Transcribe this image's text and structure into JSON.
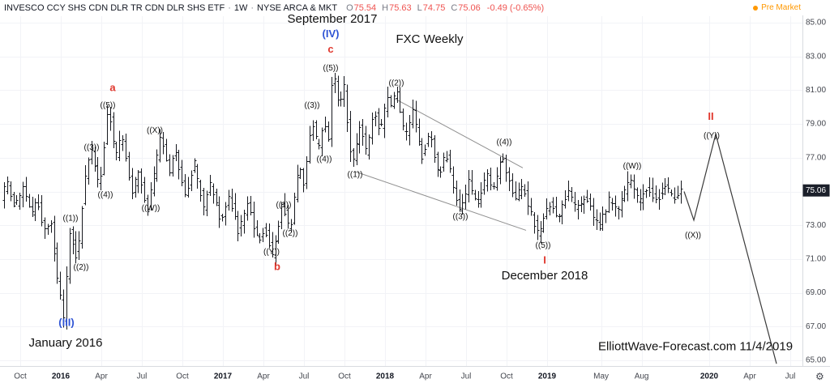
{
  "legend": {
    "symbol": "INVESCO CCY SHS CDN DLR TR CDN DLR SHS ETF",
    "sep": "·",
    "interval": "1W",
    "exchange": "NYSE ARCA & MKT",
    "ohlc": [
      {
        "k": "O",
        "v": "75.54"
      },
      {
        "k": "H",
        "v": "75.63"
      },
      {
        "k": "L",
        "v": "74.75"
      },
      {
        "k": "C",
        "v": "75.06"
      }
    ],
    "change": "-0.49 (-0.65%)",
    "pre_market": "Pre Market"
  },
  "axis_corner": {
    "gear": "⚙"
  },
  "colors": {
    "background": "#ffffff",
    "bar": "#16181e",
    "grid": "#f2f3f7",
    "channel_line": "#8f8f8f",
    "projection_line": "#3a3a3a",
    "label_black": "#111111",
    "label_blue": "#2e53d4",
    "label_red": "#e0382e",
    "axis_text": "#44474f",
    "axis_text_year": "#131722",
    "axis_border": "#d8dbe0",
    "badge_bg": "#1b1f2a",
    "badge_text": "#ffffff",
    "legend_value_red": "#ef5350",
    "pre_market": "#ff9800"
  },
  "chart_data": {
    "type": "bar",
    "title": "FXC Weekly",
    "xlabel": "",
    "ylabel": "",
    "grid": true,
    "ylim": [
      65,
      85
    ],
    "x_range": [
      2015.65,
      2019.84
    ],
    "last_price": "75.06",
    "last_close": 75.06,
    "y_ticks": [
      "85.00",
      "83.00",
      "81.00",
      "79.00",
      "77.00",
      "75.00",
      "73.00",
      "71.00",
      "69.00",
      "67.00",
      "65.00"
    ],
    "x_ticks": [
      {
        "label": "Oct",
        "t": 2015.75
      },
      {
        "label": "2016",
        "t": 2016,
        "year": true
      },
      {
        "label": "Apr",
        "t": 2016.25
      },
      {
        "label": "Jul",
        "t": 2016.5
      },
      {
        "label": "Oct",
        "t": 2016.75
      },
      {
        "label": "2017",
        "t": 2017,
        "year": true
      },
      {
        "label": "Apr",
        "t": 2017.25
      },
      {
        "label": "Jul",
        "t": 2017.5
      },
      {
        "label": "Oct",
        "t": 2017.75
      },
      {
        "label": "2018",
        "t": 2018,
        "year": true
      },
      {
        "label": "Apr",
        "t": 2018.25
      },
      {
        "label": "Jul",
        "t": 2018.5
      },
      {
        "label": "Oct",
        "t": 2018.75
      },
      {
        "label": "2019",
        "t": 2019,
        "year": true
      },
      {
        "label": "May",
        "t": 2019.333
      },
      {
        "label": "Aug",
        "t": 2019.583
      },
      {
        "label": "2020",
        "t": 2020,
        "year": true
      },
      {
        "label": "Apr",
        "t": 2020.25
      },
      {
        "label": "Jul",
        "t": 2020.5
      }
    ],
    "price_path": [
      [
        2015.64,
        74.4
      ],
      [
        2015.685,
        75.5
      ],
      [
        2015.735,
        74.0
      ],
      [
        2015.785,
        75.3
      ],
      [
        2015.835,
        73.7
      ],
      [
        2015.875,
        74.6
      ],
      [
        2015.915,
        72.6
      ],
      [
        2015.955,
        73.4
      ],
      [
        2016.0,
        69.6
      ],
      [
        2016.035,
        67.5
      ],
      [
        2016.075,
        72.8
      ],
      [
        2016.12,
        70.9
      ],
      [
        2016.165,
        75.8
      ],
      [
        2016.21,
        77.6
      ],
      [
        2016.255,
        75.0
      ],
      [
        2016.31,
        80.2
      ],
      [
        2016.355,
        77.0
      ],
      [
        2016.395,
        78.4
      ],
      [
        2016.455,
        74.8
      ],
      [
        2016.495,
        76.2
      ],
      [
        2016.555,
        73.9
      ],
      [
        2016.635,
        78.4
      ],
      [
        2016.685,
        76.2
      ],
      [
        2016.725,
        77.5
      ],
      [
        2016.785,
        74.7
      ],
      [
        2016.84,
        76.8
      ],
      [
        2016.9,
        74.0
      ],
      [
        2016.94,
        75.6
      ],
      [
        2017.005,
        73.2
      ],
      [
        2017.055,
        74.9
      ],
      [
        2017.115,
        72.6
      ],
      [
        2017.165,
        74.4
      ],
      [
        2017.235,
        72.0
      ],
      [
        2017.275,
        73.0
      ],
      [
        2017.325,
        71.2
      ],
      [
        2017.385,
        74.4
      ],
      [
        2017.43,
        72.6
      ],
      [
        2017.485,
        76.6
      ],
      [
        2017.52,
        75.5
      ],
      [
        2017.565,
        79.5
      ],
      [
        2017.605,
        77.4
      ],
      [
        2017.645,
        79.2
      ],
      [
        2017.67,
        78.3
      ],
      [
        2017.695,
        82.6
      ],
      [
        2017.73,
        80.0
      ],
      [
        2017.765,
        81.2
      ],
      [
        2017.815,
        76.4
      ],
      [
        2017.865,
        78.9
      ],
      [
        2017.905,
        77.2
      ],
      [
        2017.95,
        79.9
      ],
      [
        2017.985,
        78.5
      ],
      [
        2018.035,
        80.7
      ],
      [
        2018.06,
        79.9
      ],
      [
        2018.085,
        81.3
      ],
      [
        2018.14,
        78.2
      ],
      [
        2018.19,
        79.7
      ],
      [
        2018.245,
        77.0
      ],
      [
        2018.295,
        78.6
      ],
      [
        2018.35,
        75.8
      ],
      [
        2018.39,
        77.4
      ],
      [
        2018.475,
        73.8
      ],
      [
        2018.535,
        75.6
      ],
      [
        2018.585,
        74.2
      ],
      [
        2018.645,
        76.0
      ],
      [
        2018.685,
        75.1
      ],
      [
        2018.74,
        77.3
      ],
      [
        2018.815,
        74.4
      ],
      [
        2018.865,
        75.4
      ],
      [
        2018.965,
        72.3
      ],
      [
        2019.025,
        74.4
      ],
      [
        2019.085,
        73.4
      ],
      [
        2019.145,
        75.0
      ],
      [
        2019.195,
        73.9
      ],
      [
        2019.255,
        74.8
      ],
      [
        2019.335,
        72.8
      ],
      [
        2019.405,
        74.6
      ],
      [
        2019.455,
        73.9
      ],
      [
        2019.525,
        75.7
      ],
      [
        2019.585,
        74.3
      ],
      [
        2019.635,
        75.3
      ],
      [
        2019.685,
        74.4
      ],
      [
        2019.745,
        75.3
      ],
      [
        2019.79,
        74.6
      ],
      [
        2019.84,
        75.06
      ]
    ],
    "projection_path": [
      [
        2019.845,
        75.0
      ],
      [
        2019.905,
        73.3
      ],
      [
        2020.04,
        78.4
      ],
      [
        2020.415,
        64.8
      ]
    ],
    "channel_lines": [
      [
        [
          2018.06,
          80.5
        ],
        [
          2018.85,
          76.4
        ]
      ],
      [
        [
          2017.81,
          76.2
        ],
        [
          2018.87,
          72.7
        ]
      ]
    ],
    "labels": [
      {
        "text": "(III)",
        "t": 2016.035,
        "p": 67.2,
        "cls": "blue"
      },
      {
        "text": "January 2016",
        "t": 2016.03,
        "p": 66.0,
        "cls": "annot"
      },
      {
        "text": "((1))",
        "t": 2016.06,
        "p": 73.4,
        "cls": "wave"
      },
      {
        "text": "((2))",
        "t": 2016.125,
        "p": 70.5,
        "cls": "wave"
      },
      {
        "text": "((3))",
        "t": 2016.19,
        "p": 77.6,
        "cls": "wave"
      },
      {
        "text": "((4))",
        "t": 2016.275,
        "p": 74.8,
        "cls": "wave"
      },
      {
        "text": "((5))",
        "t": 2016.29,
        "p": 80.1,
        "cls": "wave"
      },
      {
        "text": "a",
        "t": 2016.32,
        "p": 81.1,
        "cls": "red"
      },
      {
        "text": "((W))",
        "t": 2016.555,
        "p": 74.0,
        "cls": "wave"
      },
      {
        "text": "((X))",
        "t": 2016.58,
        "p": 78.6,
        "cls": "wave"
      },
      {
        "text": "((Y))",
        "t": 2017.3,
        "p": 71.4,
        "cls": "wave"
      },
      {
        "text": "b",
        "t": 2017.335,
        "p": 70.5,
        "cls": "red"
      },
      {
        "text": "((1))",
        "t": 2017.375,
        "p": 74.2,
        "cls": "wave"
      },
      {
        "text": "((2))",
        "t": 2017.415,
        "p": 72.5,
        "cls": "wave"
      },
      {
        "text": "((3))",
        "t": 2017.55,
        "p": 80.1,
        "cls": "wave"
      },
      {
        "text": "((4))",
        "t": 2017.625,
        "p": 76.9,
        "cls": "wave"
      },
      {
        "text": "((5))",
        "t": 2017.665,
        "p": 82.3,
        "cls": "wave"
      },
      {
        "text": "c",
        "t": 2017.665,
        "p": 83.4,
        "cls": "red"
      },
      {
        "text": "(IV)",
        "t": 2017.665,
        "p": 84.3,
        "cls": "blue"
      },
      {
        "text": "September 2017",
        "t": 2017.675,
        "p": 85.2,
        "cls": "annot"
      },
      {
        "text": "FXC Weekly",
        "t": 2018.275,
        "p": 84.0,
        "cls": "annot"
      },
      {
        "text": "((1))",
        "t": 2017.815,
        "p": 76.0,
        "cls": "wave"
      },
      {
        "text": "((2))",
        "t": 2018.07,
        "p": 81.4,
        "cls": "wave"
      },
      {
        "text": "((3))",
        "t": 2018.465,
        "p": 73.5,
        "cls": "wave"
      },
      {
        "text": "((4))",
        "t": 2018.735,
        "p": 77.9,
        "cls": "wave"
      },
      {
        "text": "((5))",
        "t": 2018.975,
        "p": 71.8,
        "cls": "wave"
      },
      {
        "text": "I",
        "t": 2018.985,
        "p": 70.9,
        "cls": "red"
      },
      {
        "text": "December 2018",
        "t": 2018.985,
        "p": 70.0,
        "cls": "annot"
      },
      {
        "text": "((W))",
        "t": 2019.525,
        "p": 76.5,
        "cls": "wave"
      },
      {
        "text": "((X))",
        "t": 2019.9,
        "p": 72.4,
        "cls": "wave"
      },
      {
        "text": "((Y))",
        "t": 2020.015,
        "p": 78.3,
        "cls": "wave"
      },
      {
        "text": "II",
        "t": 2020.01,
        "p": 79.4,
        "cls": "red"
      },
      {
        "text": "ElliottWave-Forecast.com 11/4/2019",
        "t": 2019.915,
        "p": 65.8,
        "cls": "annot"
      }
    ]
  }
}
